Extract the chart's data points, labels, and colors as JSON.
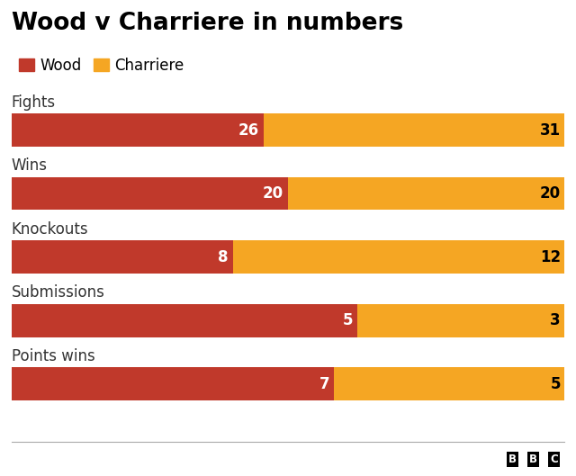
{
  "title": "Wood v Charriere in numbers",
  "legend": [
    "Wood",
    "Charriere"
  ],
  "categories": [
    "Fights",
    "Wins",
    "Knockouts",
    "Submissions",
    "Points wins"
  ],
  "wood_values": [
    26,
    20,
    8,
    5,
    7
  ],
  "charriere_values": [
    31,
    20,
    12,
    3,
    5
  ],
  "wood_color": "#c0392b",
  "charriere_color": "#f5a623",
  "background_color": "#ffffff",
  "bar_height": 0.52,
  "title_fontsize": 19,
  "label_fontsize": 12,
  "value_fontsize": 12,
  "category_fontsize": 12
}
